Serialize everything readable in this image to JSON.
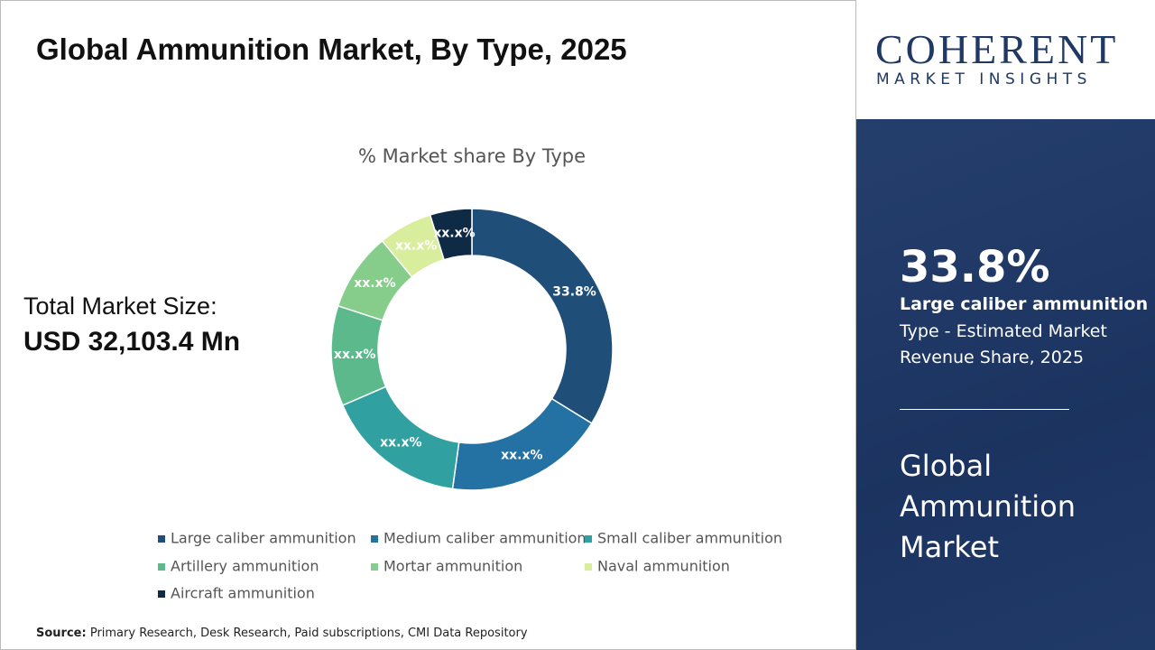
{
  "header": {
    "title": "Global Ammunition Market, By Type, 2025"
  },
  "total_market": {
    "label": "Total Market Size:",
    "value": "USD 32,103.4 Mn"
  },
  "chart_data": {
    "type": "donut",
    "title": "% Market share By Type",
    "categories": [
      "Large caliber ammunition",
      "Medium caliber ammunition",
      "Small caliber ammunition",
      "Artillery ammunition",
      "Mortar ammunition",
      "Naval ammunition",
      "Aircraft ammunition"
    ],
    "values": [
      33.8,
      18.4,
      16.3,
      11.5,
      9.0,
      6.2,
      4.8
    ],
    "value_labels": [
      "33.8%",
      "xx.x%",
      "xx.x%",
      "xx.x%",
      "xx.x%",
      "xx.x%",
      "xx.x%"
    ],
    "colors": [
      "#1f4e79",
      "#2372a3",
      "#31a0a0",
      "#5cb98c",
      "#86cc8a",
      "#d8ee9c",
      "#0f2a45"
    ]
  },
  "source": {
    "label": "Source:",
    "text": "Primary Research, Desk Research, Paid subscriptions, CMI Data Repository"
  },
  "logo": {
    "name": "COHERENT",
    "tagline": "MARKET INSIGHTS"
  },
  "highlight": {
    "value": "33.8%",
    "segment": "Large caliber ammunition",
    "description": "Type - Estimated Market Revenue Share, 2025"
  },
  "panel_title": "Global Ammunition Market"
}
